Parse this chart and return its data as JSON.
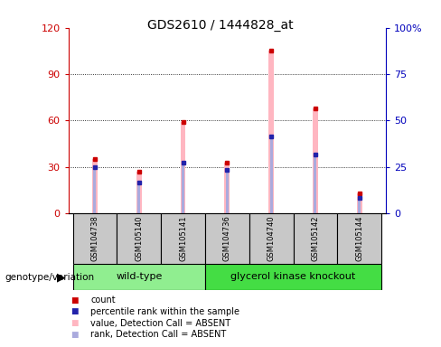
{
  "title": "GDS2610 / 1444828_at",
  "samples": [
    "GSM104738",
    "GSM105140",
    "GSM105141",
    "GSM104736",
    "GSM104740",
    "GSM105142",
    "GSM105144"
  ],
  "pink_values": [
    35,
    27,
    59,
    33,
    105,
    68,
    13
  ],
  "blue_values": [
    30,
    20,
    33,
    28,
    50,
    38,
    10
  ],
  "pink_color": "#FFB6C1",
  "blue_color": "#AAAADD",
  "dark_pink_color": "#CC0000",
  "dark_blue_color": "#2222AA",
  "left_ylim": [
    0,
    120
  ],
  "left_yticks": [
    0,
    30,
    60,
    90,
    120
  ],
  "left_ycolor": "#CC0000",
  "right_ycolor": "#0000BB",
  "right_yticklabels": [
    "0",
    "25",
    "50",
    "75",
    "100%"
  ],
  "bar_width": 0.12,
  "blue_bar_width": 0.06,
  "wt_color": "#90EE90",
  "gk_color": "#44DD44",
  "label_box_color": "#C8C8C8",
  "legend_colors": [
    "#CC0000",
    "#2222AA",
    "#FFB6C1",
    "#AAAADD"
  ],
  "legend_labels": [
    "count",
    "percentile rank within the sample",
    "value, Detection Call = ABSENT",
    "rank, Detection Call = ABSENT"
  ],
  "group_label": "genotype/variation"
}
